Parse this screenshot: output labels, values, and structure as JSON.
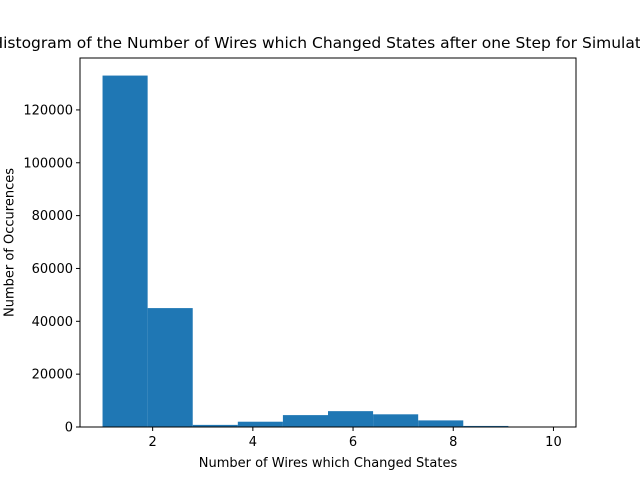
{
  "chart_data": {
    "type": "bar",
    "title": "Histogram of the Number of Wires which Changed States after one Step for Simulation",
    "xlabel": "Number of Wires which Changed States",
    "ylabel": "Number of Occurences",
    "bins": [
      {
        "start": 1.0,
        "end": 1.9,
        "count": 133000
      },
      {
        "start": 1.9,
        "end": 2.8,
        "count": 45000
      },
      {
        "start": 2.8,
        "end": 3.7,
        "count": 800
      },
      {
        "start": 3.7,
        "end": 4.6,
        "count": 2000
      },
      {
        "start": 4.6,
        "end": 5.5,
        "count": 4500
      },
      {
        "start": 5.5,
        "end": 6.4,
        "count": 6000
      },
      {
        "start": 6.4,
        "end": 7.3,
        "count": 4800
      },
      {
        "start": 7.3,
        "end": 8.2,
        "count": 2500
      },
      {
        "start": 8.2,
        "end": 9.1,
        "count": 400
      },
      {
        "start": 9.1,
        "end": 10.0,
        "count": 80
      }
    ],
    "xlim": [
      0.55,
      10.45
    ],
    "ylim": [
      0,
      139650
    ],
    "xticks": [
      2,
      4,
      6,
      8,
      10
    ],
    "xtick_labels": [
      "2",
      "4",
      "6",
      "8",
      "10"
    ],
    "yticks": [
      0,
      20000,
      40000,
      60000,
      80000,
      100000,
      120000
    ],
    "ytick_labels": [
      "0",
      "20000",
      "40000",
      "60000",
      "80000",
      "100000",
      "120000"
    ],
    "grid": false,
    "bar_color": "#1f77b4"
  }
}
